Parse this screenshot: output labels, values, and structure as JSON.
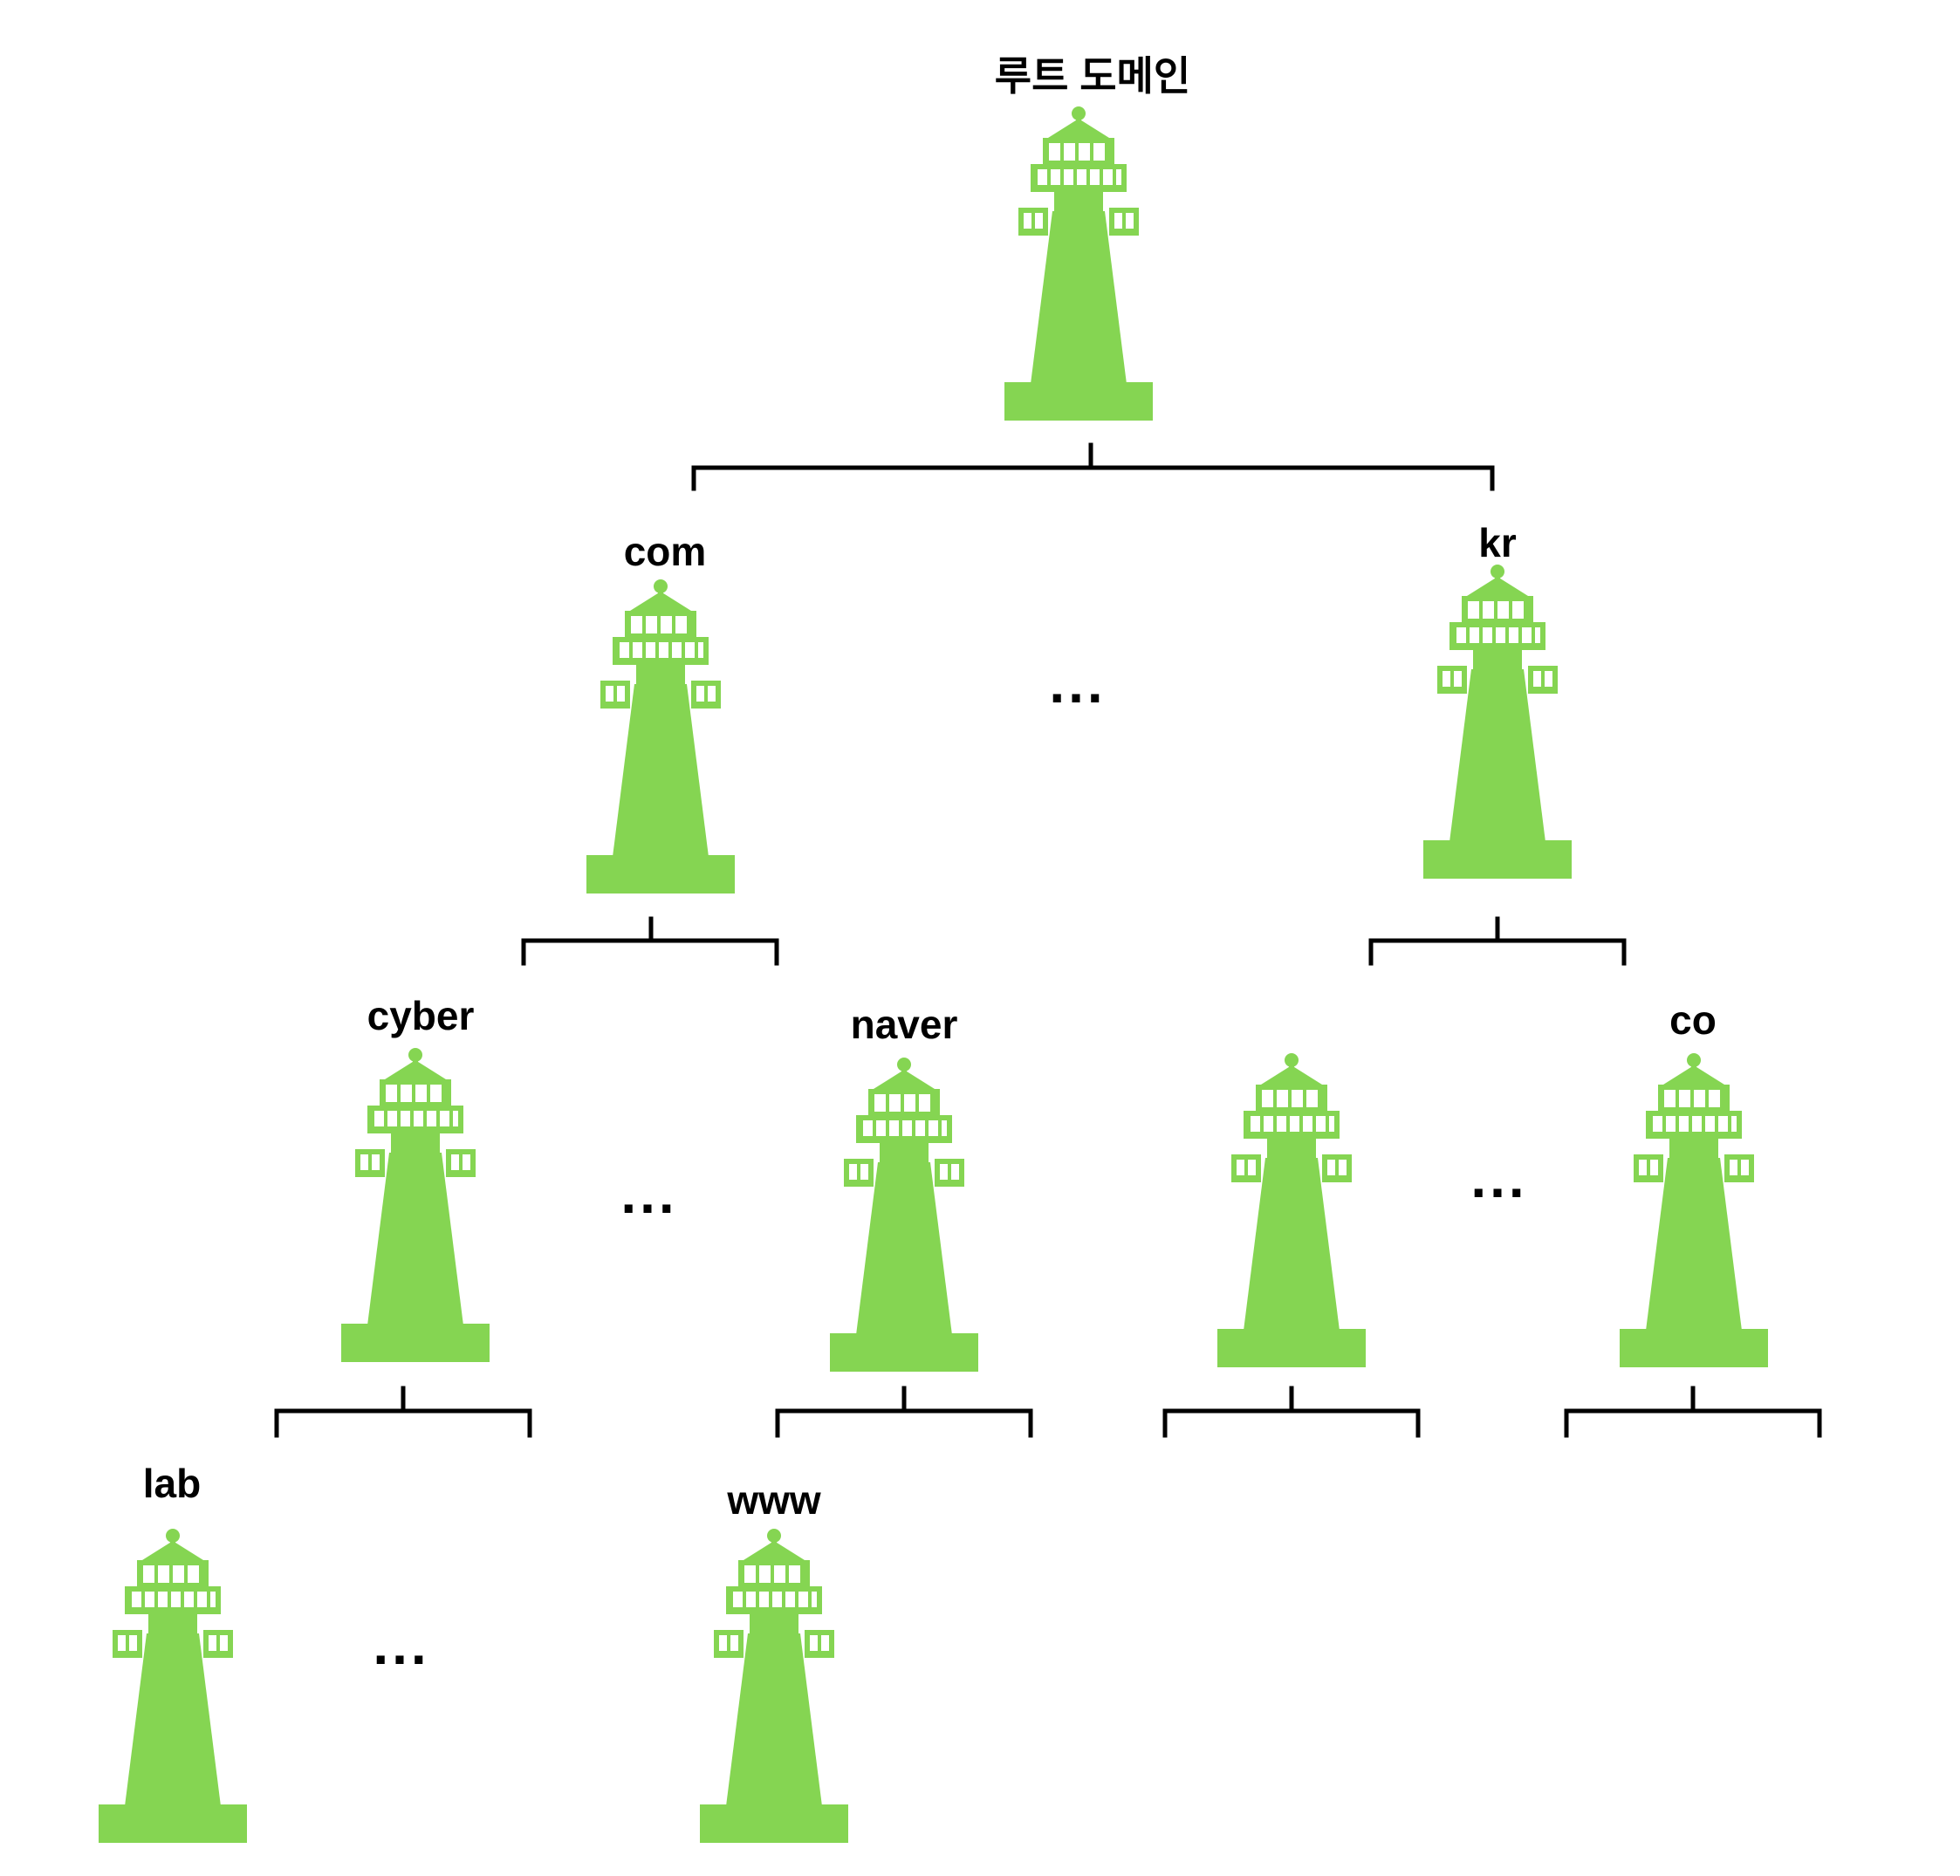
{
  "colors": {
    "lighthouse": "#85d552",
    "line": "#000000",
    "text": "#000000",
    "background": "#ffffff"
  },
  "icon": "lighthouse-icon",
  "nodes": {
    "root": {
      "label": "루트 도메인"
    },
    "com": {
      "label": "com"
    },
    "kr": {
      "label": "kr"
    },
    "cyber": {
      "label": "cyber"
    },
    "naver": {
      "label": "naver"
    },
    "kr_child": {
      "label": ""
    },
    "co": {
      "label": "co"
    },
    "lab": {
      "label": "lab"
    },
    "www": {
      "label": "www"
    }
  },
  "ellipsis": {
    "tld": "...",
    "com_children": "...",
    "kr_children": "...",
    "cyber_children": "..."
  }
}
